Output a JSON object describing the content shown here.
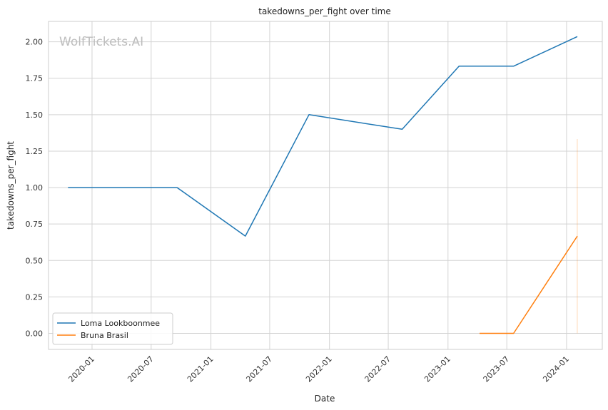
{
  "chart_data": {
    "type": "line",
    "title": "takedowns_per_fight over time",
    "xlabel": "Date",
    "ylabel": "takedowns_per_fight",
    "watermark": "WolfTickets.AI",
    "xlim": [
      "2019-08-20",
      "2024-04-20"
    ],
    "ylim": [
      -0.11,
      2.14
    ],
    "grid": true,
    "legend_position": "lower-left",
    "x_ticks": [
      "2020-01",
      "2020-07",
      "2021-01",
      "2021-07",
      "2022-01",
      "2022-07",
      "2023-01",
      "2023-07",
      "2024-01"
    ],
    "y_ticks": [
      "0.00",
      "0.25",
      "0.50",
      "0.75",
      "1.00",
      "1.25",
      "1.50",
      "1.75",
      "2.00"
    ],
    "series": [
      {
        "name": "Loma Lookboonmee",
        "color": "#1f77b4",
        "x": [
          "2019-10-19",
          "2020-09-19",
          "2021-04-17",
          "2021-10-30",
          "2022-08-13",
          "2023-02-04",
          "2023-07-22",
          "2024-02-03"
        ],
        "y": [
          1.0,
          1.0,
          0.667,
          1.5,
          1.4,
          1.833,
          1.833,
          2.036
        ]
      },
      {
        "name": "Bruna Brasil",
        "color": "#ff7f0e",
        "x": [
          "2023-04-08",
          "2023-07-22",
          "2024-02-03"
        ],
        "y": [
          0.0,
          0.0,
          0.667
        ]
      }
    ],
    "annotations": [
      {
        "type": "vertical-band",
        "x": "2024-02-03",
        "y_range": [
          0.0,
          1.333
        ],
        "color": "#ff7f0e"
      }
    ]
  }
}
